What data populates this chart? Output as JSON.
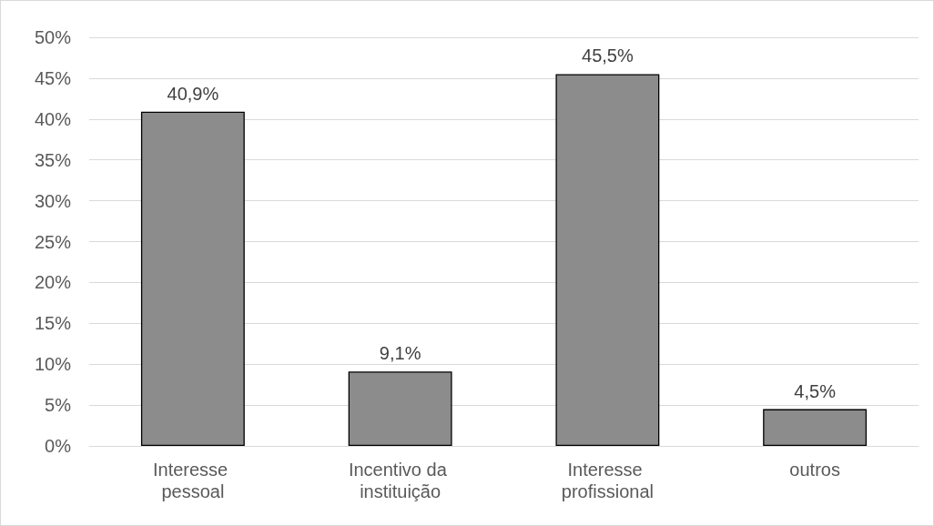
{
  "chart_data": {
    "type": "bar",
    "categories": [
      "Interesse pessoal",
      "Incentivo da instituição",
      "Interesse profissional",
      "outros"
    ],
    "values": [
      40.9,
      9.1,
      45.5,
      4.5
    ],
    "value_labels": [
      "40,9%",
      "9,1%",
      "45,5%",
      "4,5%"
    ],
    "color": "#8c8c8c",
    "ylim": [
      0,
      50
    ],
    "yticks": [
      {
        "value": 0,
        "label": "0%"
      },
      {
        "value": 5,
        "label": "5%"
      },
      {
        "value": 10,
        "label": "10%"
      },
      {
        "value": 15,
        "label": "15%"
      },
      {
        "value": 20,
        "label": "20%"
      },
      {
        "value": 25,
        "label": "25%"
      },
      {
        "value": 30,
        "label": "30%"
      },
      {
        "value": 35,
        "label": "35%"
      },
      {
        "value": 40,
        "label": "40%"
      },
      {
        "value": 45,
        "label": "45%"
      },
      {
        "value": 50,
        "label": "50%"
      }
    ],
    "grid": true
  }
}
